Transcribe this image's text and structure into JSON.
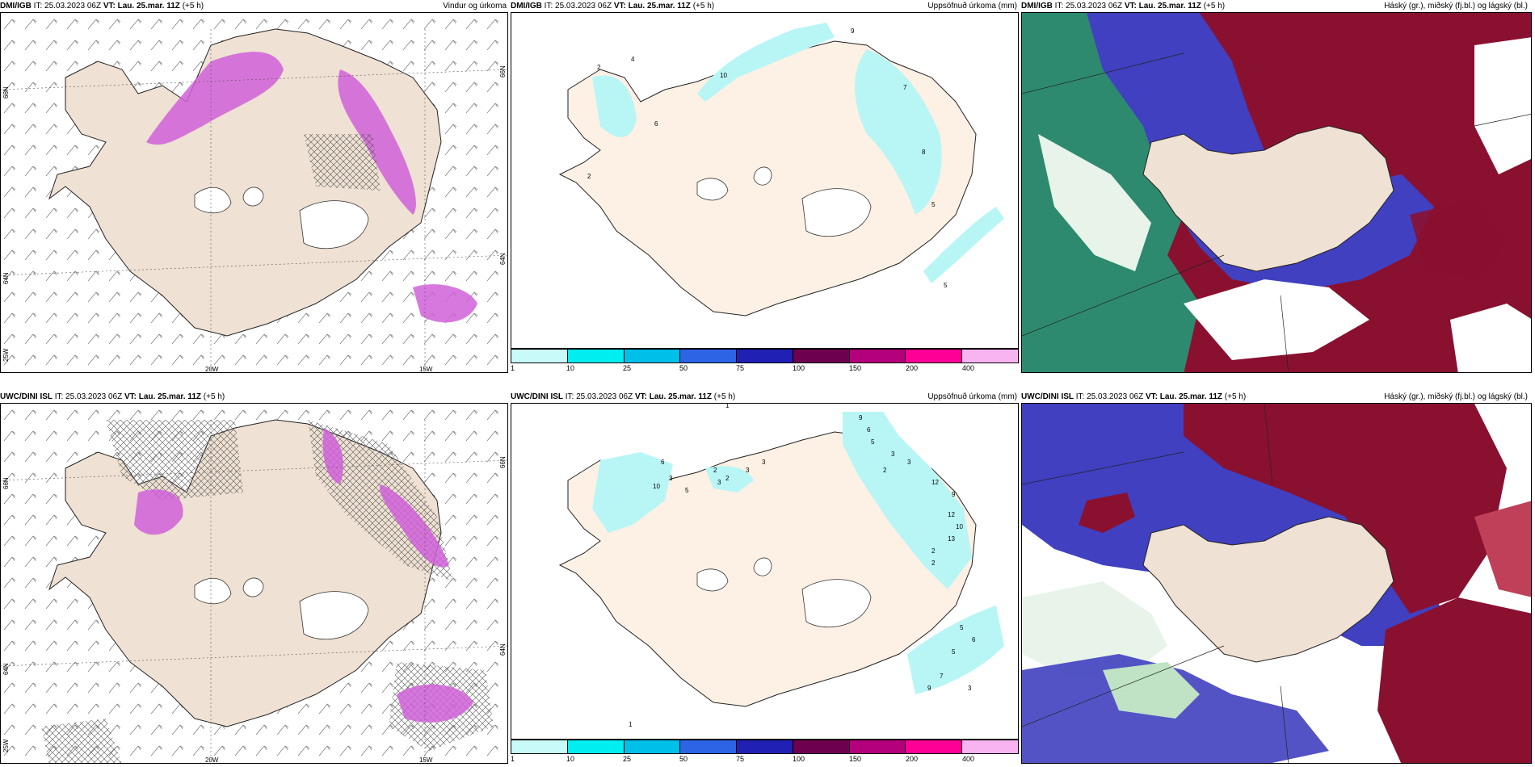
{
  "panels": [
    {
      "model": "DMI/IGB",
      "it": "IT: 25.03.2023 06Z",
      "vt": "VT: Lau. 25.mar. 11Z",
      "offset": "(+5 h)",
      "title": "Vindur og úrkoma",
      "lat_labels": [
        "66N",
        "64N",
        "25W"
      ],
      "lat_right": [
        "66N",
        "64N"
      ],
      "lon_labels": [
        "20W",
        "15W"
      ]
    },
    {
      "model": "DMI/IGB",
      "it": "IT: 25.03.2023 06Z",
      "vt": "VT: Lau. 25.mar. 11Z",
      "offset": "(+5 h)",
      "title": "Uppsöfnuð úrkoma (mm)",
      "values": [
        "10",
        "9",
        "7",
        "8",
        "5",
        "5",
        "4",
        "2",
        "2",
        "6"
      ]
    },
    {
      "model": "DMI/IGB",
      "it": "IT: 25.03.2023 06Z",
      "vt": "VT: Lau. 25.mar. 11Z",
      "offset": "(+5 h)",
      "title": "Háský (gr.), miðský (fj.bl.) og lágský (bl.)"
    },
    {
      "model": "UWC/DINI ISL",
      "it": "IT: 25.03.2023 06Z",
      "vt": "VT: Lau. 25.mar. 11Z",
      "offset": "(+5 h)",
      "title": "",
      "lat_labels": [
        "66N",
        "64N",
        "25W"
      ],
      "lat_right": [
        "66N",
        "64N"
      ],
      "lon_labels": [
        "20W",
        "15W"
      ]
    },
    {
      "model": "UWC/DINI ISL",
      "it": "IT: 25.03.2023 06Z",
      "vt": "VT: Lau. 25.mar. 11Z",
      "offset": "(+5 h)",
      "title": "Uppsöfnuð úrkoma (mm)",
      "values": [
        "9",
        "6",
        "5",
        "3",
        "3",
        "2",
        "12",
        "9",
        "12",
        "10",
        "13",
        "2",
        "2",
        "10",
        "6",
        "3",
        "5",
        "2",
        "3",
        "2",
        "3",
        "3",
        "5",
        "6",
        "5",
        "7",
        "9",
        "3",
        "1",
        "1"
      ]
    },
    {
      "model": "UWC/DINI ISL",
      "it": "IT: 25.03.2023 06Z",
      "vt": "VT: Lau. 25.mar. 11Z",
      "offset": "(+5 h)",
      "title": "Háský (gr.), miðský (fj.bl.) og lágský (bl.)"
    }
  ],
  "colorbar": {
    "colors": [
      "#c8fafa",
      "#00eef0",
      "#00c0ea",
      "#2d64e6",
      "#2020b4",
      "#6e0050",
      "#b4007c",
      "#ff0096",
      "#f8b4f0"
    ],
    "labels": [
      "1",
      "10",
      "25",
      "50",
      "75",
      "100",
      "150",
      "200",
      "400"
    ]
  },
  "colors": {
    "land": "#efe1d3",
    "land_precip": "#fdf0e4",
    "ice": "#ffffff",
    "precip_magenta": "#d060d8",
    "precip_cyan": "#b8f6f6",
    "cloud_high": "#2e8a6e",
    "cloud_mid": "#4040c0",
    "cloud_low": "#8a1030"
  }
}
